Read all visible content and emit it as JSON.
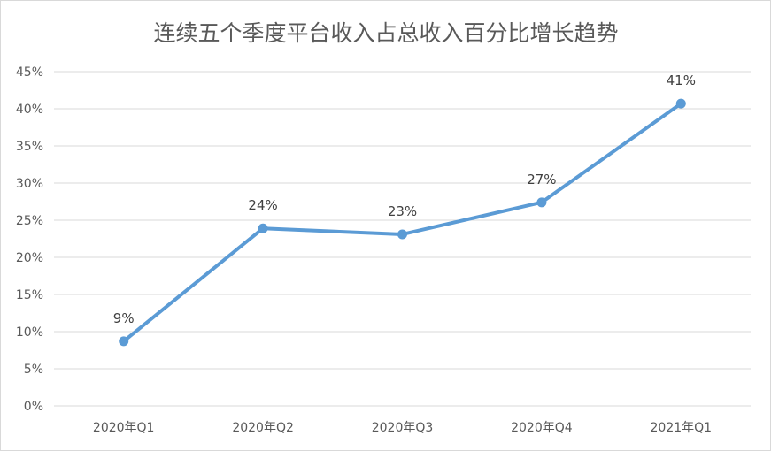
{
  "chart_data": {
    "type": "line",
    "title": "连续五个季度平台收入占总收入百分比增长趋势",
    "categories": [
      "2020年Q1",
      "2020年Q2",
      "2020年Q3",
      "2020年Q4",
      "2021年Q1"
    ],
    "series": [
      {
        "values": [
          8.7,
          23.9,
          23.1,
          27.4,
          40.7
        ],
        "data_labels": [
          "9%",
          "24%",
          "23%",
          "27%",
          "41%"
        ],
        "color": "#5b9bd5"
      }
    ],
    "y_ticks": [
      "0%",
      "5%",
      "10%",
      "15%",
      "20%",
      "25%",
      "30%",
      "35%",
      "40%",
      "45%"
    ],
    "ylim": [
      0,
      45
    ],
    "grid": true,
    "legend": "none"
  }
}
